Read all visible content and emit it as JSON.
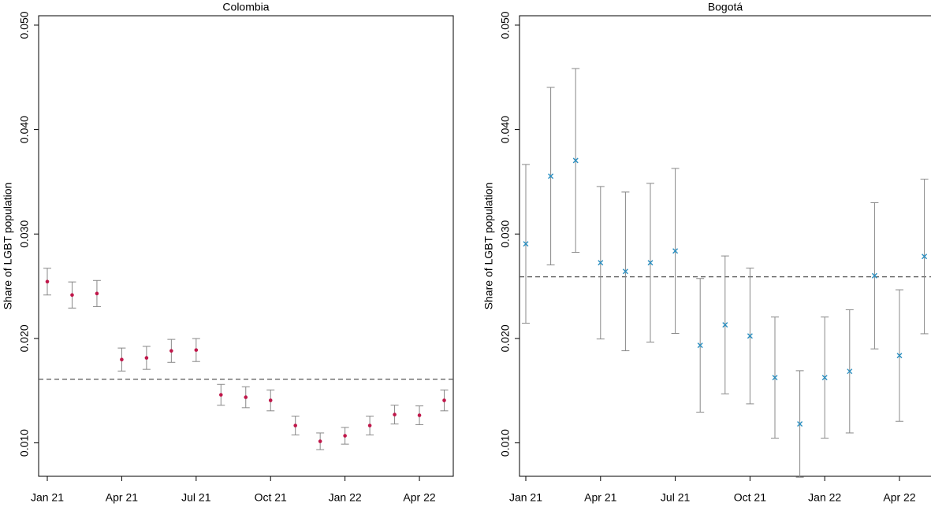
{
  "chart_data": [
    {
      "type": "errorbar",
      "title": "Colombia",
      "ylabel": "Share of LGBT population",
      "categories": [
        "Jan 21",
        null,
        null,
        "Apr 21",
        null,
        null,
        "Jul 21",
        null,
        null,
        "Oct 21",
        null,
        null,
        "Jan 22",
        null,
        null,
        "Apr 22",
        null
      ],
      "series": [
        {
          "color": "#c0174a",
          "marker": "dot",
          "values": [
            0.02544,
            0.02416,
            0.0243,
            0.01798,
            0.01814,
            0.01881,
            0.01889,
            0.0146,
            0.01437,
            0.01407,
            0.01166,
            0.01015,
            0.01068,
            0.01166,
            0.01271,
            0.01264,
            0.01407
          ],
          "errors": [
            0.00128,
            0.00125,
            0.00125,
            0.0011,
            0.0011,
            0.0011,
            0.0011,
            0.001,
            0.001,
            0.001,
            0.0009,
            0.0008,
            0.0008,
            0.0009,
            0.0009,
            0.0009,
            0.001
          ]
        }
      ],
      "hline": 0.0161,
      "ylim": [
        0.0068,
        0.0509
      ],
      "yticks": [
        {
          "value": 0.01,
          "label": "0.010"
        },
        {
          "value": 0.02,
          "label": "0.020"
        },
        {
          "value": 0.03,
          "label": "0.030"
        },
        {
          "value": 0.04,
          "label": "0.040"
        },
        {
          "value": 0.05,
          "label": "0.050"
        }
      ]
    },
    {
      "type": "errorbar",
      "title": "Bogotá",
      "ylabel": "Share of LGBT population",
      "categories": [
        "Jan 21",
        null,
        null,
        "Apr 21",
        null,
        null,
        "Jul 21",
        null,
        null,
        "Oct 21",
        null,
        null,
        "Jan 22",
        null,
        null,
        "Apr 22",
        null
      ],
      "series": [
        {
          "color": "#2a8fc1",
          "marker": "cross",
          "values": [
            0.02906,
            0.03554,
            0.03704,
            0.02725,
            0.02642,
            0.02725,
            0.02838,
            0.01934,
            0.0213,
            0.02024,
            0.01625,
            0.01181,
            0.01625,
            0.01685,
            0.026,
            0.01836,
            0.02785
          ],
          "errors": [
            0.0076,
            0.0085,
            0.0088,
            0.0073,
            0.0076,
            0.0076,
            0.0079,
            0.0064,
            0.0066,
            0.0065,
            0.0058,
            0.0051,
            0.0058,
            0.0059,
            0.007,
            0.0063,
            0.0074
          ]
        }
      ],
      "hline": 0.0259,
      "ylim": [
        0.0068,
        0.0509
      ],
      "yticks": [
        {
          "value": 0.01,
          "label": "0.010"
        },
        {
          "value": 0.02,
          "label": "0.020"
        },
        {
          "value": 0.03,
          "label": "0.030"
        },
        {
          "value": 0.04,
          "label": "0.040"
        },
        {
          "value": 0.05,
          "label": "0.050"
        }
      ]
    }
  ]
}
